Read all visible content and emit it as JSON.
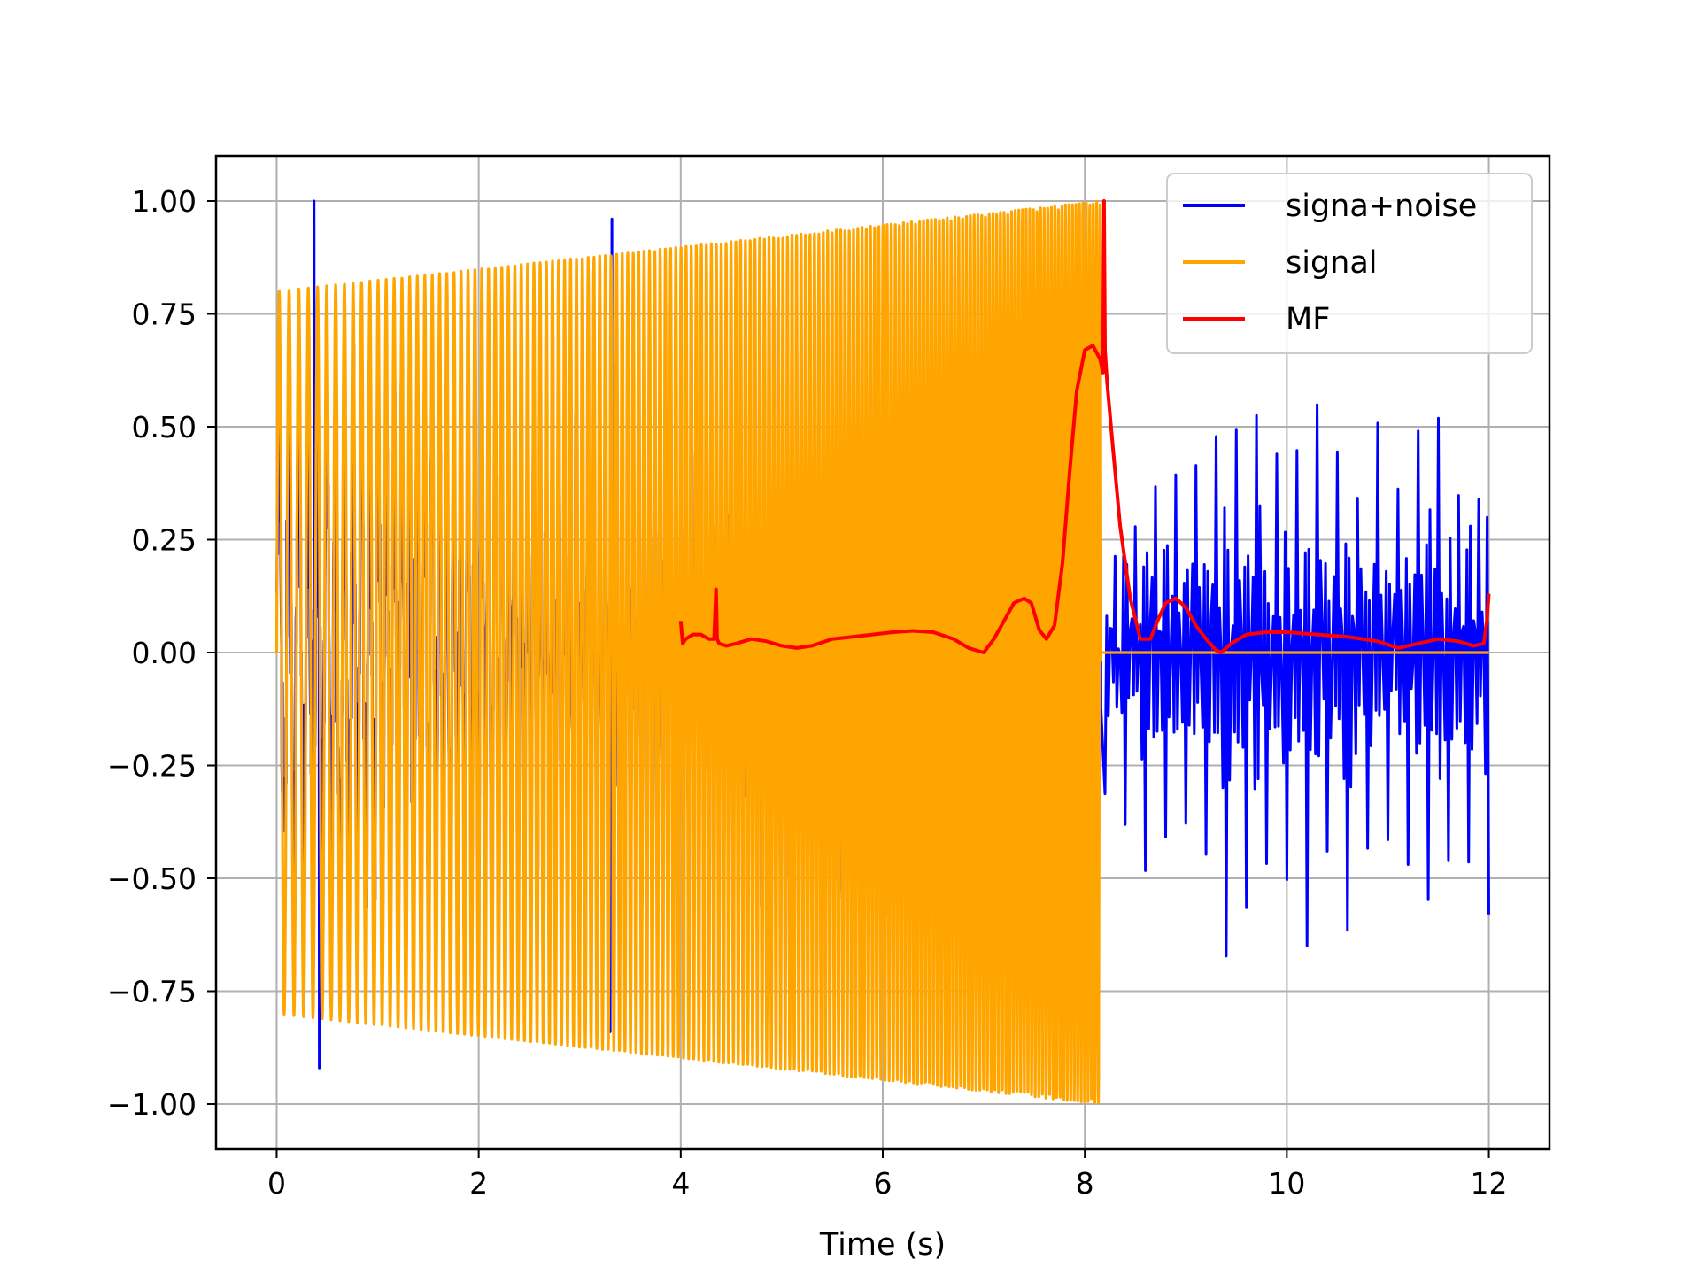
{
  "chart_data": {
    "type": "line",
    "title": "",
    "xlabel": "Time (s)",
    "ylabel": "",
    "xlim": [
      -0.6,
      12.6
    ],
    "ylim": [
      -1.1,
      1.1
    ],
    "grid": true,
    "legend_position": "top-right",
    "x_ticks": [
      0,
      2,
      4,
      6,
      8,
      10,
      12
    ],
    "x_tick_labels": [
      "0",
      "2",
      "4",
      "6",
      "8",
      "10",
      "12"
    ],
    "y_ticks": [
      1.0,
      0.75,
      0.5,
      0.25,
      0.0,
      -0.25,
      -0.5,
      -0.75,
      -1.0
    ],
    "y_tick_labels": [
      "1.00",
      "0.75",
      "0.50",
      "0.25",
      "0.00",
      "−0.25",
      "−0.50",
      "−0.75",
      "−1.00"
    ],
    "series": [
      {
        "name": "signa+noise",
        "color": "#0000ff",
        "x_range": [
          0,
          12
        ],
        "peak_spikes": [
          [
            0.37,
            1.0
          ],
          [
            0.42,
            -0.92
          ],
          [
            3.32,
            0.96
          ],
          [
            3.3,
            -0.84
          ]
        ],
        "noise_segment": {
          "x": [
            8.2,
            8.3,
            8.4,
            8.5,
            8.6,
            8.7,
            8.8,
            8.9,
            9.0,
            9.1,
            9.2,
            9.3,
            9.4,
            9.5,
            9.6,
            9.7,
            9.8,
            9.9,
            10.0,
            10.1,
            10.2,
            10.3,
            10.4,
            10.5,
            10.6,
            10.7,
            10.8,
            10.9,
            11.0,
            11.1,
            11.2,
            11.3,
            11.4,
            11.5,
            11.6,
            11.7,
            11.8,
            11.9,
            12.0
          ],
          "y": [
            -0.28,
            0.25,
            -0.35,
            0.3,
            -0.5,
            0.43,
            -0.45,
            0.35,
            -0.42,
            0.4,
            -0.5,
            0.46,
            -0.62,
            0.49,
            -0.55,
            0.58,
            -0.4,
            0.38,
            -0.5,
            0.45,
            -0.58,
            0.5,
            -0.42,
            0.4,
            -0.55,
            0.42,
            -0.45,
            0.5,
            -0.4,
            0.38,
            -0.43,
            0.5,
            -0.55,
            0.5,
            -0.45,
            0.4,
            -0.55,
            0.34,
            -0.58
          ]
        }
      },
      {
        "name": "signal",
        "color": "#ffa500",
        "x_range": [
          0,
          8.16
        ],
        "amplitude_start": 0.8,
        "amplitude_end": 1.0,
        "zero_after": [
          8.16,
          12.0
        ]
      },
      {
        "name": "MF",
        "color": "#ff0000",
        "x": [
          4.0,
          4.02,
          4.05,
          4.12,
          4.2,
          4.28,
          4.33,
          4.35,
          4.36,
          4.38,
          4.45,
          4.55,
          4.7,
          4.85,
          5.0,
          5.15,
          5.3,
          5.5,
          5.7,
          5.9,
          6.1,
          6.3,
          6.5,
          6.7,
          6.85,
          7.0,
          7.1,
          7.2,
          7.3,
          7.4,
          7.47,
          7.55,
          7.62,
          7.7,
          7.78,
          7.85,
          7.92,
          8.0,
          8.08,
          8.15,
          8.18,
          8.19,
          8.2,
          8.22,
          8.28,
          8.35,
          8.45,
          8.55,
          8.65,
          8.72,
          8.8,
          8.9,
          9.0,
          9.1,
          9.2,
          9.3,
          9.35,
          9.45,
          9.6,
          9.8,
          10.0,
          10.3,
          10.6,
          10.9,
          11.1,
          11.3,
          11.5,
          11.7,
          11.85,
          11.95,
          11.98,
          12.0
        ],
        "y": [
          0.07,
          0.02,
          0.03,
          0.04,
          0.04,
          0.03,
          0.03,
          0.14,
          0.03,
          0.02,
          0.015,
          0.02,
          0.03,
          0.025,
          0.015,
          0.01,
          0.015,
          0.03,
          0.035,
          0.04,
          0.045,
          0.048,
          0.045,
          0.03,
          0.01,
          0.0,
          0.03,
          0.07,
          0.11,
          0.12,
          0.11,
          0.05,
          0.03,
          0.06,
          0.2,
          0.4,
          0.58,
          0.67,
          0.68,
          0.65,
          0.62,
          1.0,
          0.67,
          0.6,
          0.45,
          0.28,
          0.12,
          0.03,
          0.03,
          0.07,
          0.11,
          0.12,
          0.1,
          0.06,
          0.03,
          0.005,
          0.0,
          0.02,
          0.04,
          0.045,
          0.045,
          0.04,
          0.035,
          0.025,
          0.01,
          0.02,
          0.03,
          0.025,
          0.015,
          0.02,
          0.07,
          0.13
        ]
      }
    ]
  }
}
